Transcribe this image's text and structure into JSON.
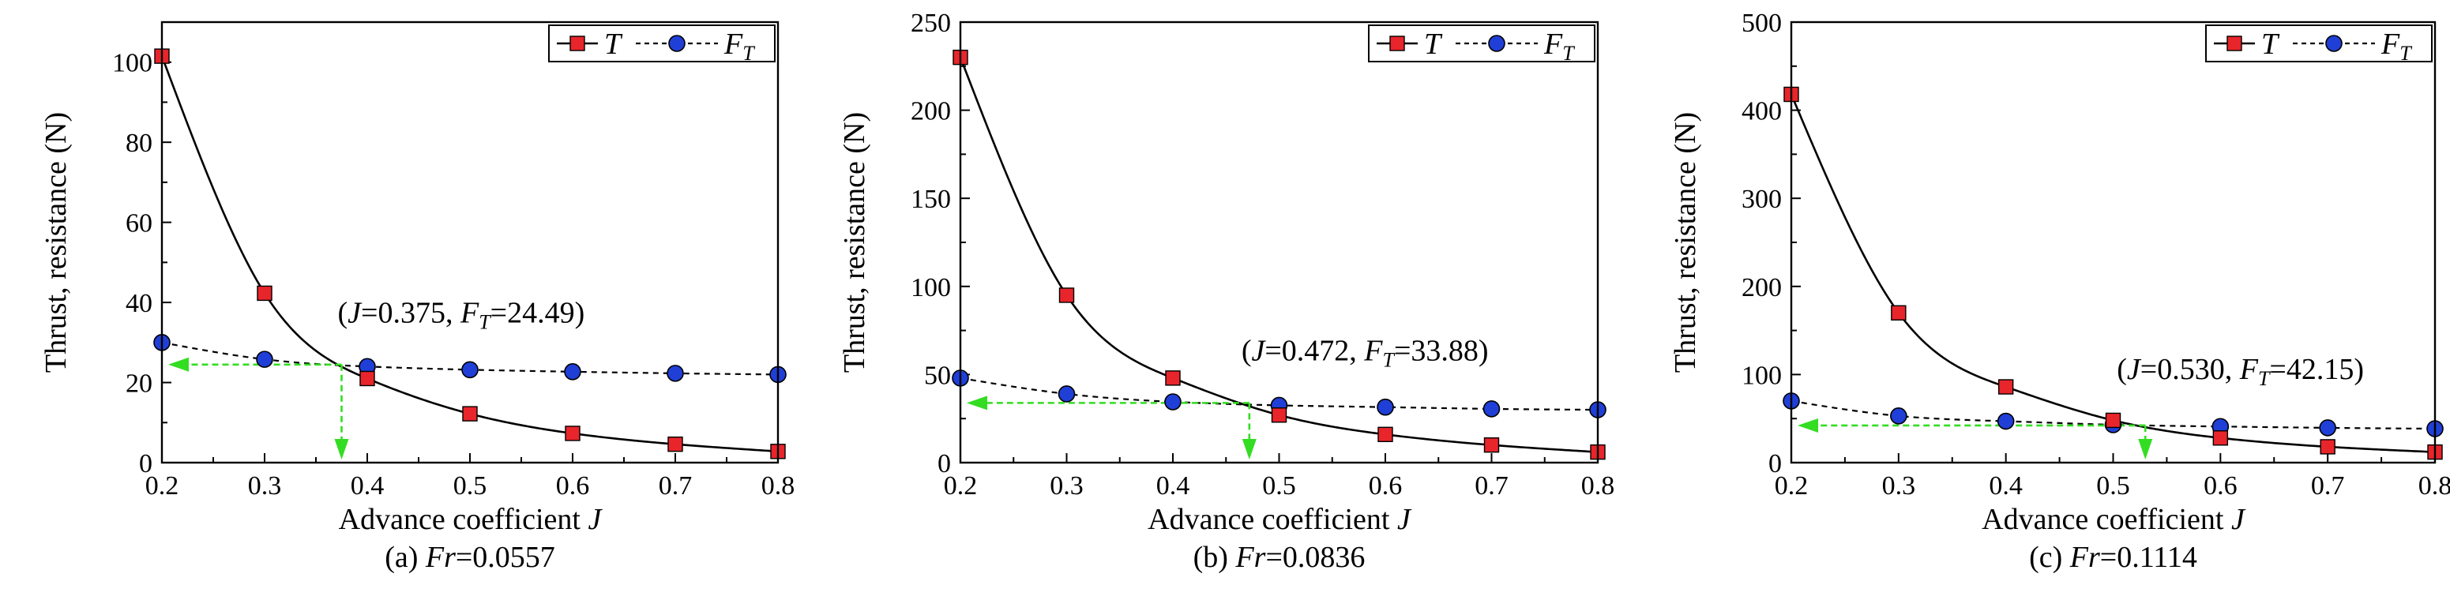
{
  "chart_data": [
    {
      "type": "line",
      "caption": {
        "prefix": "(a) ",
        "var": "Fr",
        "value": "=0.0557"
      },
      "xlabel": "Advance coefficient ",
      "xlabel_var": "J",
      "ylabel": "Thrust, resistance (N)",
      "xlim": [
        0.2,
        0.8
      ],
      "ylim": [
        0,
        110
      ],
      "xticks": [
        0.2,
        0.3,
        0.4,
        0.5,
        0.6,
        0.7,
        0.8
      ],
      "yticks": [
        0,
        20,
        40,
        60,
        80,
        100
      ],
      "series": [
        {
          "name": "T",
          "marker": "square",
          "line": "solid",
          "color": "#e8252b",
          "x": [
            0.2,
            0.3,
            0.4,
            0.5,
            0.6,
            0.7,
            0.8
          ],
          "y": [
            101.5,
            42.3,
            21.0,
            12.2,
            7.3,
            4.6,
            2.8
          ]
        },
        {
          "name": "F_T",
          "marker": "circle",
          "line": "dashed",
          "color": "#1f3fd6",
          "x": [
            0.2,
            0.3,
            0.4,
            0.5,
            0.6,
            0.7,
            0.8
          ],
          "y": [
            30.0,
            25.8,
            24.0,
            23.2,
            22.7,
            22.3,
            22.0
          ]
        }
      ],
      "intersection": {
        "J": 0.375,
        "FT": 24.49,
        "label_open": "(",
        "label_j": "J",
        "label_j_val": "=0.375, ",
        "label_f": "F",
        "label_f_sub": "T",
        "label_f_val": "=24.49)"
      }
    },
    {
      "type": "line",
      "caption": {
        "prefix": "(b) ",
        "var": "Fr",
        "value": "=0.0836"
      },
      "xlabel": "Advance coefficient ",
      "xlabel_var": "J",
      "ylabel": "Thrust, resistance (N)",
      "xlim": [
        0.2,
        0.8
      ],
      "ylim": [
        0,
        250
      ],
      "xticks": [
        0.2,
        0.3,
        0.4,
        0.5,
        0.6,
        0.7,
        0.8
      ],
      "yticks": [
        0,
        50,
        100,
        150,
        200,
        250
      ],
      "series": [
        {
          "name": "T",
          "marker": "square",
          "line": "solid",
          "color": "#e8252b",
          "x": [
            0.2,
            0.3,
            0.4,
            0.5,
            0.6,
            0.7,
            0.8
          ],
          "y": [
            230,
            95,
            48,
            27,
            16,
            10,
            6
          ]
        },
        {
          "name": "F_T",
          "marker": "circle",
          "line": "dashed",
          "color": "#1f3fd6",
          "x": [
            0.2,
            0.3,
            0.4,
            0.5,
            0.6,
            0.7,
            0.8
          ],
          "y": [
            48,
            39,
            34.5,
            32.5,
            31.5,
            30.5,
            30
          ]
        }
      ],
      "intersection": {
        "J": 0.472,
        "FT": 33.88,
        "label_open": "(",
        "label_j": "J",
        "label_j_val": "=0.472, ",
        "label_f": "F",
        "label_f_sub": "T",
        "label_f_val": "=33.88)"
      }
    },
    {
      "type": "line",
      "caption": {
        "prefix": "(c) ",
        "var": "Fr",
        "value": "=0.1114"
      },
      "xlabel": "Advance coefficient ",
      "xlabel_var": "J",
      "ylabel": "Thrust, resistance (N)",
      "xlim": [
        0.2,
        0.8
      ],
      "ylim": [
        0,
        500
      ],
      "xticks": [
        0.2,
        0.3,
        0.4,
        0.5,
        0.6,
        0.7,
        0.8
      ],
      "yticks": [
        0,
        100,
        200,
        300,
        400,
        500
      ],
      "series": [
        {
          "name": "T",
          "marker": "square",
          "line": "solid",
          "color": "#e8252b",
          "x": [
            0.2,
            0.3,
            0.4,
            0.5,
            0.6,
            0.7,
            0.8
          ],
          "y": [
            418,
            170,
            86,
            48,
            28,
            18,
            12
          ]
        },
        {
          "name": "F_T",
          "marker": "circle",
          "line": "dashed",
          "color": "#1f3fd6",
          "x": [
            0.2,
            0.3,
            0.4,
            0.5,
            0.6,
            0.7,
            0.8
          ],
          "y": [
            70,
            53,
            47,
            43,
            41,
            39.5,
            38.5
          ]
        }
      ],
      "intersection": {
        "J": 0.53,
        "FT": 42.15,
        "label_open": "(",
        "label_j": "J",
        "label_j_val": "=0.530, ",
        "label_f": "F",
        "label_f_sub": "T",
        "label_f_val": "=42.15)"
      }
    }
  ],
  "legend": {
    "t_label": "T",
    "ft_label": "F",
    "ft_sub": "T"
  },
  "colors": {
    "t_line": "#000000",
    "t_marker": "#e8252b",
    "ft_marker": "#1f3fd6",
    "guide": "#33dd22"
  }
}
